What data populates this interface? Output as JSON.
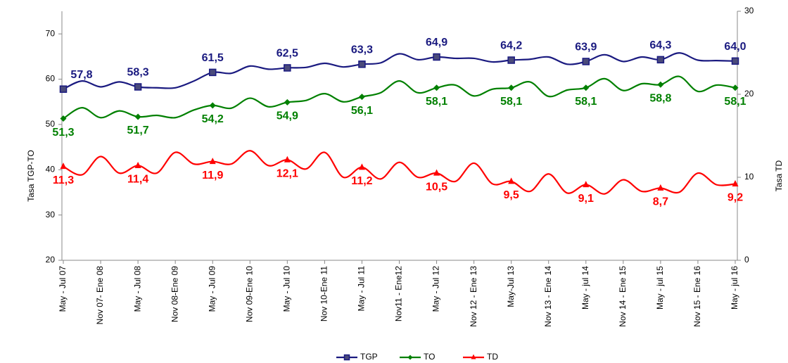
{
  "chart_data": {
    "type": "line",
    "y_label": "Tasa TGP-TO",
    "y2_label": "Tasa TD",
    "categories": [
      "May - Jul 07",
      null,
      "Nov 07- Ene 08",
      null,
      "May - Jul 08",
      null,
      "Nov 08-Ene 09",
      null,
      "May - Jul 09",
      null,
      "Nov 09-Ene 10",
      null,
      "May - Jul 10",
      null,
      "Nov 10-Ene 11",
      null,
      "May - Jul 11",
      null,
      "Nov11 - Ene12",
      null,
      "May - Jul 12",
      null,
      "Nov 12 - Ene 13",
      null,
      "May-Jul 13",
      null,
      "Nov 13 - Ene 14",
      null,
      "May - jul 14",
      null,
      "Nov 14 - Ene 15",
      null,
      "May - jul 15",
      null,
      "Nov 15 - Ene 16",
      null,
      "May - jul 16"
    ],
    "ylim": [
      20,
      75
    ],
    "yticks": [
      20,
      30,
      40,
      50,
      60,
      70
    ],
    "y2lim": [
      0,
      30
    ],
    "y2ticks": [
      0,
      10,
      20,
      30
    ],
    "series": [
      {
        "name": "TGP",
        "color": "#1a1a80",
        "marker": "square",
        "values": [
          57.8,
          59.6,
          58.3,
          59.4,
          58.3,
          58.1,
          58.1,
          59.6,
          61.5,
          61.3,
          62.9,
          62.2,
          62.5,
          62.6,
          63.5,
          62.7,
          63.3,
          63.6,
          65.6,
          64.3,
          64.9,
          64.6,
          64.6,
          63.8,
          64.2,
          64.4,
          64.9,
          63.3,
          63.9,
          65.4,
          63.9,
          64.9,
          64.3,
          65.8,
          64.2,
          64.1,
          64.0
        ],
        "value_labels": [
          "57,8",
          null,
          null,
          null,
          "58,3",
          null,
          null,
          null,
          "61,5",
          null,
          null,
          null,
          "62,5",
          null,
          null,
          null,
          "63,3",
          null,
          null,
          null,
          "64,9",
          null,
          null,
          null,
          "64,2",
          null,
          null,
          null,
          "63,9",
          null,
          null,
          null,
          "64,3",
          null,
          null,
          null,
          "64,0"
        ]
      },
      {
        "name": "TO",
        "color": "#008000",
        "marker": "diamond",
        "values": [
          51.3,
          53.7,
          51.5,
          53.0,
          51.7,
          52.0,
          51.5,
          53.2,
          54.2,
          53.6,
          55.8,
          53.9,
          54.9,
          55.3,
          56.8,
          55.0,
          56.1,
          57.0,
          59.6,
          57.0,
          58.1,
          58.7,
          56.3,
          57.8,
          58.1,
          59.4,
          56.2,
          57.6,
          58.1,
          60.1,
          57.5,
          59.0,
          58.8,
          60.6,
          57.3,
          58.7,
          58.1
        ],
        "value_labels": [
          "51,3",
          null,
          null,
          null,
          "51,7",
          null,
          null,
          null,
          "54,2",
          null,
          null,
          null,
          "54,9",
          null,
          null,
          null,
          "56,1",
          null,
          null,
          null,
          "58,1",
          null,
          null,
          null,
          "58,1",
          null,
          null,
          null,
          "58,1",
          null,
          null,
          null,
          "58,8",
          null,
          null,
          null,
          "58,1"
        ]
      },
      {
        "name": "TD",
        "color": "#ff0000",
        "marker": "triangle",
        "axis": "y2",
        "values": [
          11.3,
          10.3,
          12.5,
          10.5,
          11.4,
          10.5,
          13.0,
          11.6,
          11.9,
          11.6,
          13.2,
          11.4,
          12.1,
          11.0,
          13.0,
          10.0,
          11.2,
          9.8,
          11.8,
          10.0,
          10.5,
          9.5,
          11.7,
          9.2,
          9.5,
          8.3,
          10.4,
          8.1,
          9.1,
          8.0,
          9.7,
          8.3,
          8.7,
          8.2,
          10.5,
          9.1,
          9.2
        ],
        "value_labels": [
          "11,3",
          null,
          null,
          null,
          "11,4",
          null,
          null,
          null,
          "11,9",
          null,
          null,
          null,
          "12,1",
          null,
          null,
          null,
          "11,2",
          null,
          null,
          null,
          "10,5",
          null,
          null,
          null,
          "9,5",
          null,
          null,
          null,
          "9,1",
          null,
          null,
          null,
          "8,7",
          null,
          null,
          null,
          "9,2"
        ]
      }
    ]
  }
}
